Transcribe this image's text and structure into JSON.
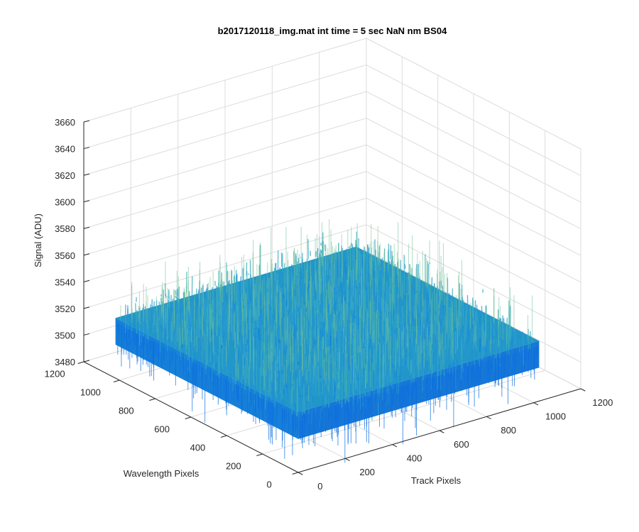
{
  "chart_data": {
    "type": "surface",
    "title": "b2017120118_img.mat int time = 5 sec  NaN nm BS04",
    "xlabel": "Track Pixels",
    "ylabel": "Wavelength Pixels",
    "zlabel": "Signal (ADU)",
    "xlim": [
      0,
      1200
    ],
    "ylim": [
      0,
      1200
    ],
    "zlim": [
      3480,
      3660
    ],
    "x_ticks": [
      0,
      200,
      400,
      600,
      800,
      1000,
      1200
    ],
    "y_ticks": [
      0,
      200,
      400,
      600,
      800,
      1000,
      1200
    ],
    "z_ticks": [
      3480,
      3500,
      3520,
      3540,
      3560,
      3580,
      3600,
      3620,
      3640,
      3660
    ],
    "data_extent": {
      "x": [
        1,
        1024
      ],
      "y": [
        1,
        1024
      ]
    },
    "signal_mean": 3525,
    "signal_range_approx": [
      3490,
      3590
    ],
    "colormap": "parula",
    "grid": true
  }
}
